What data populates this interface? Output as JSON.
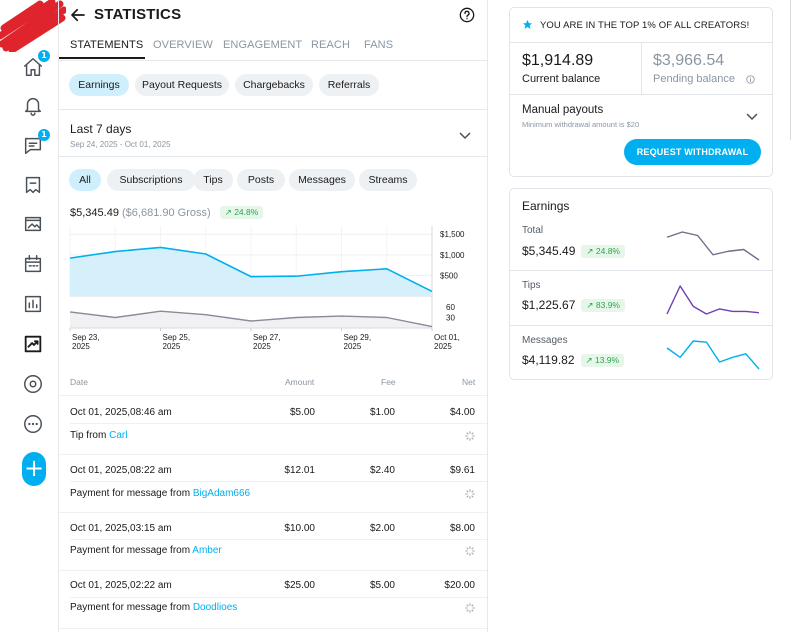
{
  "header": {
    "title": "STATISTICS"
  },
  "nav": {
    "home_badge": "1",
    "messages_badge": "1"
  },
  "tabs": [
    {
      "label": "STATEMENTS"
    },
    {
      "label": "OVERVIEW"
    },
    {
      "label": "ENGAGEMENT"
    },
    {
      "label": "REACH"
    },
    {
      "label": "FANS"
    }
  ],
  "sub_tabs": [
    {
      "label": "Earnings"
    },
    {
      "label": "Payout Requests"
    },
    {
      "label": "Chargebacks"
    },
    {
      "label": "Referrals"
    }
  ],
  "range": {
    "label": "Last 7 days",
    "dates": "Sep 24, 2025 - Oct 01, 2025"
  },
  "filters": [
    {
      "label": "All"
    },
    {
      "label": "Subscriptions"
    },
    {
      "label": "Tips"
    },
    {
      "label": "Posts"
    },
    {
      "label": "Messages"
    },
    {
      "label": "Streams"
    }
  ],
  "totals": {
    "net": "$5,345.49",
    "gross": "($6,681.90 Gross)",
    "change": "24.8%"
  },
  "chart_data": {
    "type": "area",
    "x": [
      "Sep 23, 2025",
      "Sep 24, 2025",
      "Sep 25, 2025",
      "Sep 26, 2025",
      "Sep 27, 2025",
      "Sep 28, 2025",
      "Sep 29, 2025",
      "Sep 30, 2025",
      "Oct 01, 2025"
    ],
    "x_tick_labels": [
      {
        "line1": "Sep 23,",
        "line2": "2025"
      },
      {
        "line1": "Sep 25,",
        "line2": "2025"
      },
      {
        "line1": "Sep 27,",
        "line2": "2025"
      },
      {
        "line1": "Sep 29,",
        "line2": "2025"
      },
      {
        "line1": "Oct 01,",
        "line2": "2025"
      }
    ],
    "series": [
      {
        "values": [
          920,
          1080,
          1180,
          1020,
          470,
          480,
          590,
          660,
          110
        ],
        "color": "#00aff0"
      },
      {
        "values": [
          46,
          30,
          48,
          38,
          20,
          30,
          34,
          30,
          4
        ],
        "color": "#8a8a9a"
      }
    ],
    "top_axis": {
      "ticks": [
        "$1,500",
        "$1,000",
        "$500"
      ],
      "ylim": [
        0,
        1700
      ]
    },
    "bottom_axis": {
      "ticks": [
        "60",
        "30"
      ],
      "ylim": [
        0,
        80
      ]
    },
    "grid": true
  },
  "table": {
    "headers": {
      "date": "Date",
      "amount": "Amount",
      "fee": "Fee",
      "net": "Net"
    },
    "rows": [
      {
        "date": "Oct 01, 2025,08:46 am",
        "amount": "$5.00",
        "fee": "$1.00",
        "net": "$4.00",
        "desc": "Tip from",
        "user": "Carl"
      },
      {
        "date": "Oct 01, 2025,08:22 am",
        "amount": "$12.01",
        "fee": "$2.40",
        "net": "$9.61",
        "desc": "Payment for message from",
        "user": "BigAdam666"
      },
      {
        "date": "Oct 01, 2025,03:15 am",
        "amount": "$10.00",
        "fee": "$2.00",
        "net": "$8.00",
        "desc": "Payment for message from",
        "user": "Amber"
      },
      {
        "date": "Oct 01, 2025,02:22 am",
        "amount": "$25.00",
        "fee": "$5.00",
        "net": "$20.00",
        "desc": "Payment for message from",
        "user": "Doodlioes"
      }
    ]
  },
  "balance_card": {
    "top_text": "YOU ARE IN THE TOP 1% OF ALL CREATORS!",
    "current": "$1,914.89",
    "current_label": "Current balance",
    "pending": "$3,966.54",
    "pending_label": "Pending balance",
    "payout_label": "Manual payouts",
    "payout_min": "Minimum withdrawal amount is $20",
    "withdraw_button": "REQUEST WITHDRAWAL"
  },
  "earnings_card": {
    "title": "Earnings",
    "items": [
      {
        "name": "Total",
        "value": "$5,345.49",
        "change": "24.8%",
        "spark_color": "#6b6f8a",
        "spark": [
          16,
          19,
          17,
          6,
          8,
          9,
          3
        ]
      },
      {
        "name": "Tips",
        "value": "$1,225.67",
        "change": "83.9%",
        "spark_color": "#6c3fb5",
        "spark": [
          6,
          28,
          12,
          6,
          10,
          8,
          8,
          7
        ]
      },
      {
        "name": "Messages",
        "value": "$4,119.82",
        "change": "13.9%",
        "spark_color": "#00aff0",
        "spark": [
          22,
          14,
          28,
          27,
          10,
          14,
          17,
          4
        ]
      }
    ]
  },
  "colors": {
    "accent": "#00aff0",
    "positive": "#2ea44f"
  }
}
